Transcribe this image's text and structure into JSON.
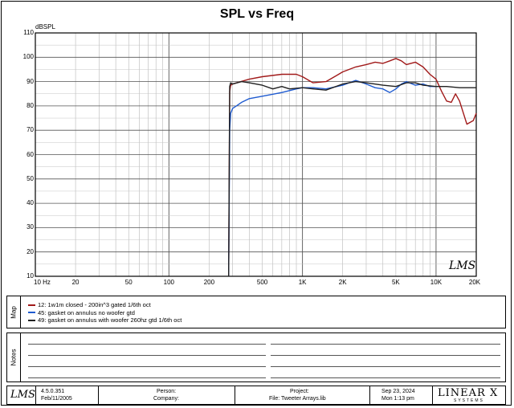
{
  "chart_data": {
    "type": "line",
    "title": "SPL vs Freq",
    "ylabel": "dBSPL",
    "xlabel": "",
    "xscale": "log",
    "xlim": [
      10,
      20000
    ],
    "ylim": [
      10,
      110
    ],
    "grid": true,
    "ytick_labels": [
      "110",
      "100",
      "90",
      "80",
      "70",
      "60",
      "50",
      "40",
      "30",
      "20",
      "10"
    ],
    "xtick_labels": [
      "10 Hz",
      "20",
      "50",
      "100",
      "200",
      "500",
      "1K",
      "2K",
      "5K",
      "10K",
      "20K"
    ],
    "series": [
      {
        "name": "12: 1w1m closed - 200in^3 gated 1/6th oct",
        "color": "#a11a1a",
        "x": [
          280,
          285,
          290,
          300,
          400,
          500,
          700,
          900,
          1000,
          1200,
          1500,
          1800,
          2000,
          2500,
          3000,
          3500,
          4000,
          4500,
          5000,
          5500,
          6000,
          7000,
          8000,
          9000,
          10000,
          11000,
          12000,
          13000,
          14000,
          15000,
          17000,
          19000,
          20000
        ],
        "y": [
          10,
          86,
          88.5,
          89,
          91,
          92,
          93,
          93,
          92,
          89.5,
          90,
          92.5,
          94,
          96,
          97,
          98,
          97.5,
          98.5,
          99.5,
          98.5,
          97,
          98,
          96,
          93,
          91,
          86,
          82,
          81.5,
          85,
          82,
          72.5,
          74,
          77
        ]
      },
      {
        "name": "45: gasket on annulus no woofer gtd",
        "color": "#1f5bd0",
        "x": [
          280,
          285,
          290,
          300,
          320,
          350,
          400,
          500,
          700,
          900,
          1000,
          1200,
          1500,
          2000,
          2500,
          3000,
          3500,
          4000,
          4500,
          5000,
          5500,
          6000,
          7000,
          8000,
          9000,
          10000
        ],
        "y": [
          10,
          70,
          77,
          79,
          80,
          81.5,
          83,
          84,
          85.5,
          87,
          87.5,
          87.5,
          87,
          88.5,
          90.5,
          89,
          87.5,
          87,
          85.5,
          87,
          89,
          90,
          88.5,
          89,
          88,
          88
        ]
      },
      {
        "name": "49: gasket on annulus with woofer 260hz gtd 1/6th oct",
        "color": "#202020",
        "x": [
          280,
          285,
          290,
          300,
          350,
          400,
          500,
          600,
          700,
          800,
          1000,
          1200,
          1500,
          2000,
          2500,
          3000,
          4000,
          5000,
          6000,
          7000,
          8000,
          10000,
          12000,
          15000,
          18000,
          20000
        ],
        "y": [
          10,
          88,
          89.5,
          89,
          90,
          89.5,
          88.5,
          87,
          88,
          87,
          87.5,
          87,
          86.5,
          89,
          90,
          89.5,
          88.5,
          88,
          89.5,
          89.5,
          88.5,
          88,
          88,
          87.5,
          87.5,
          87.5
        ]
      }
    ]
  },
  "unit_label": "dBSPL",
  "watermark": "LMS",
  "map": {
    "label": "Map"
  },
  "notes": {
    "label": "Notes"
  },
  "footer": {
    "version": "4.5.0.351",
    "version_date": "Feb/11/2005",
    "person_label": "Person:",
    "company_label": "Company:",
    "project_label": "Project:",
    "file_label": "File: Tweeter Arrays.lib",
    "date": "Sep 23, 2024",
    "time": "Mon  1:13 pm",
    "brand": "LINEAR X",
    "brand_sub": "SYSTEMS"
  }
}
